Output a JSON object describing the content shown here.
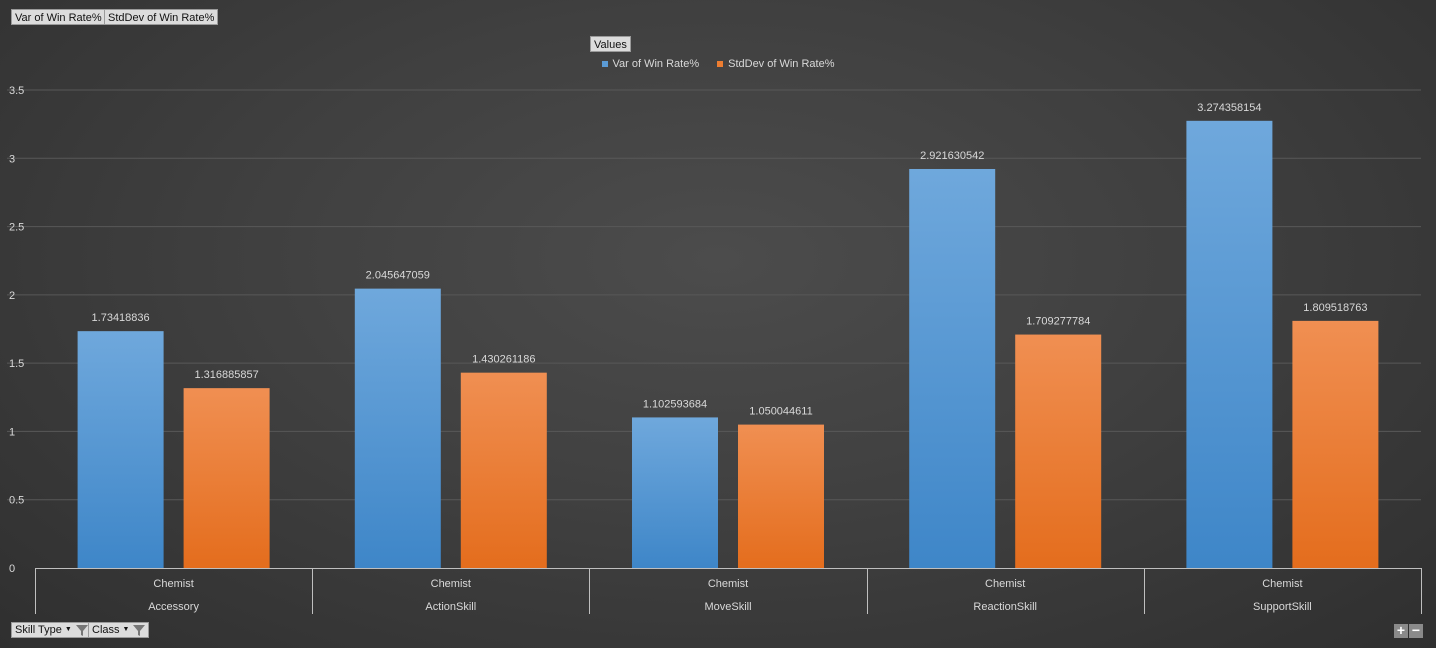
{
  "value_fields": [
    "Var of Win Rate%",
    "StdDev of Win Rate%"
  ],
  "legend_field_label": "Values",
  "axis_fields": [
    {
      "label": "Skill Type",
      "icon": "filter-icon"
    },
    {
      "label": "Class",
      "icon": "filter-icon"
    }
  ],
  "zoom": {
    "plus": "+",
    "minus": "−"
  },
  "colors": {
    "series1": "#5b9bd5",
    "series2": "#ed7d31"
  },
  "chart_data": {
    "type": "bar",
    "title": "",
    "xlabel": "",
    "ylabel": "",
    "ylim": [
      0,
      3.5
    ],
    "yticks": [
      0,
      0.5,
      1,
      1.5,
      2,
      2.5,
      3,
      3.5
    ],
    "grid": true,
    "legend_position": "top",
    "categories": [
      {
        "outer": "Accessory",
        "inner": "Chemist"
      },
      {
        "outer": "ActionSkill",
        "inner": "Chemist"
      },
      {
        "outer": "MoveSkill",
        "inner": "Chemist"
      },
      {
        "outer": "ReactionSkill",
        "inner": "Chemist"
      },
      {
        "outer": "SupportSkill",
        "inner": "Chemist"
      }
    ],
    "series": [
      {
        "name": "Var of Win Rate%",
        "color": "#5b9bd5",
        "values": [
          1.73418836,
          2.045647059,
          1.102593684,
          2.921630542,
          3.274358154
        ]
      },
      {
        "name": "StdDev of Win Rate%",
        "color": "#ed7d31",
        "values": [
          1.316885857,
          1.430261186,
          1.050044611,
          1.709277784,
          1.809518763
        ]
      }
    ]
  }
}
